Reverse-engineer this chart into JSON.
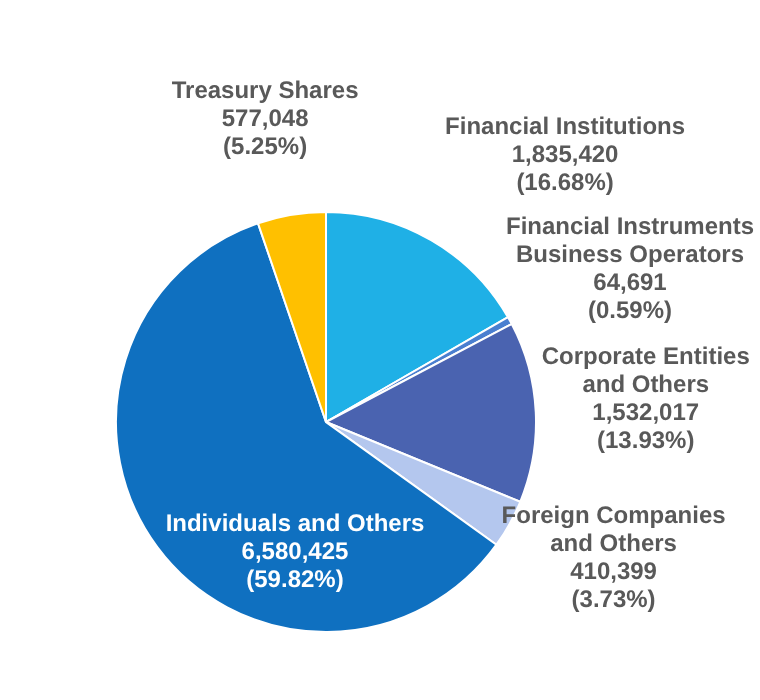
{
  "chart_data": {
    "type": "pie",
    "categories": [
      "Financial Institutions",
      "Financial Instruments Business Operators",
      "Corporate Entities and Others",
      "Foreign Companies and Others",
      "Individuals and Others",
      "Treasury Shares"
    ],
    "values": [
      1835420,
      64691,
      1532017,
      410399,
      6580425,
      577048
    ],
    "value_labels": [
      "1,835,420\n(16.68%)",
      "64,691\n(0.59%)",
      "1,532,017\n(13.93%)",
      "410,399\n(3.73%)",
      "6,580,425\n(59.82%)",
      "577,048\n(5.25%)"
    ],
    "colors": [
      "#1fb0e6",
      "#4a7fd0",
      "#4a63b0",
      "#b4c7ee",
      "#0f70c0",
      "#ffc000"
    ],
    "legend": false
  }
}
